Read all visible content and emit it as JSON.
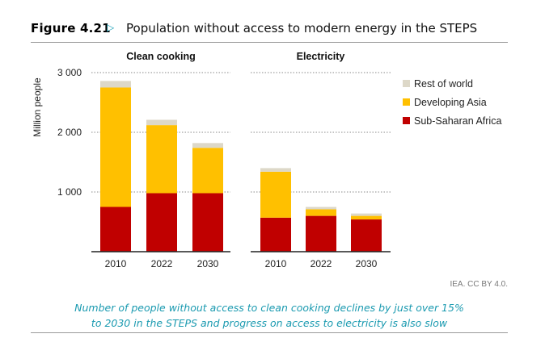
{
  "header": {
    "figure_label": "Figure 4.21",
    "arrow": "▷",
    "title": "Population without access to modern energy in the STEPS"
  },
  "chart_data": {
    "type": "bar",
    "stacked": true,
    "ylabel": "Million people",
    "ylim": [
      0,
      3000
    ],
    "yticks": [
      1000,
      2000,
      3000
    ],
    "ytick_labels": [
      "1 000",
      "2 000",
      "3 000"
    ],
    "grid": "dotted horizontal",
    "legend_position": "right",
    "colors": {
      "Rest of world": "#ddd8c8",
      "Developing Asia": "#ffc000",
      "Sub-Saharan Africa": "#c00000"
    },
    "panels": [
      {
        "title": "Clean cooking",
        "categories": [
          "2010",
          "2022",
          "2030"
        ],
        "series": [
          {
            "name": "Sub-Saharan Africa",
            "values": [
              750,
              980,
              980
            ]
          },
          {
            "name": "Developing Asia",
            "values": [
              2000,
              1140,
              760
            ]
          },
          {
            "name": "Rest of world",
            "values": [
              110,
              90,
              80
            ]
          }
        ]
      },
      {
        "title": "Electricity",
        "categories": [
          "2010",
          "2022",
          "2030"
        ],
        "series": [
          {
            "name": "Sub-Saharan Africa",
            "values": [
              570,
              600,
              540
            ]
          },
          {
            "name": "Developing Asia",
            "values": [
              770,
              110,
              60
            ]
          },
          {
            "name": "Rest of world",
            "values": [
              60,
              40,
              40
            ]
          }
        ]
      }
    ],
    "legend": [
      "Rest of world",
      "Developing Asia",
      "Sub-Saharan Africa"
    ]
  },
  "credit": "IEA. CC BY 4.0.",
  "caption": {
    "line1": "Number of people without access to clean cooking declines by just over 15%",
    "line2": "to 2030 in the STEPS and progress on access to electricity is also slow"
  }
}
